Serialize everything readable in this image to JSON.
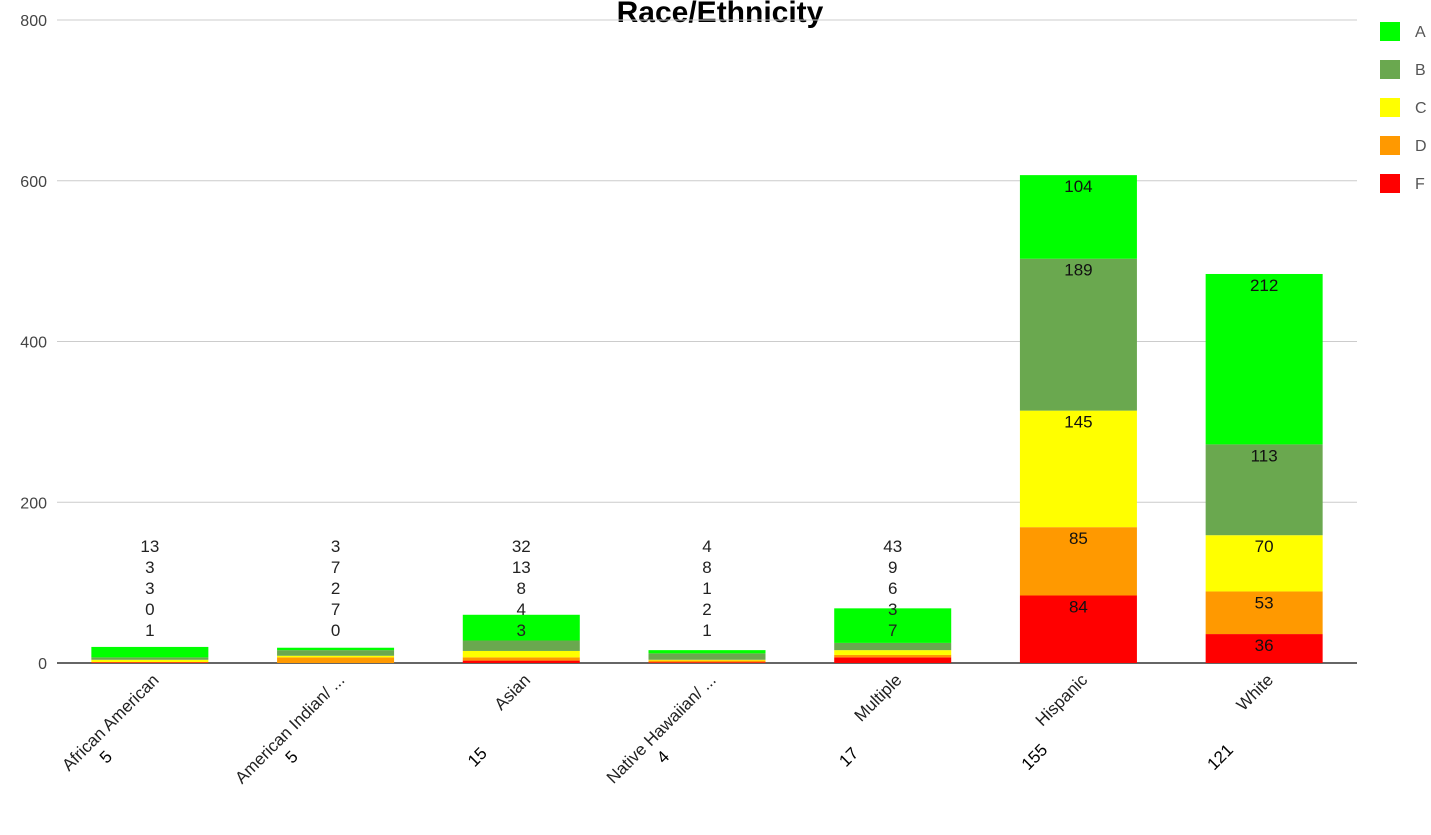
{
  "chart_data": {
    "type": "bar",
    "stacked": true,
    "title": "Race/Ethnicity",
    "xlabel": "",
    "ylabel": "",
    "ylim": [
      0,
      800
    ],
    "yticks": [
      0,
      200,
      400,
      600,
      800
    ],
    "grid": true,
    "legend_position": "right",
    "categories": [
      "African American",
      "American Indian/ ...",
      "Asian",
      "Native Hawaiian/ ...",
      "Multiple",
      "Hispanic",
      "White"
    ],
    "series": [
      {
        "name": "F",
        "color": "#ff0000",
        "values": [
          1,
          0,
          3,
          1,
          7,
          84,
          36
        ]
      },
      {
        "name": "D",
        "color": "#ff9900",
        "values": [
          0,
          7,
          4,
          2,
          3,
          85,
          53
        ]
      },
      {
        "name": "C",
        "color": "#ffff00",
        "values": [
          3,
          2,
          8,
          1,
          6,
          145,
          70
        ]
      },
      {
        "name": "B",
        "color": "#6aa84f",
        "values": [
          3,
          7,
          13,
          8,
          9,
          189,
          113
        ]
      },
      {
        "name": "A",
        "color": "#00ff00",
        "values": [
          13,
          3,
          32,
          4,
          43,
          104,
          212
        ]
      }
    ],
    "category_labels": [
      "5",
      "5",
      "15",
      "4",
      "17",
      "155",
      "121"
    ]
  }
}
